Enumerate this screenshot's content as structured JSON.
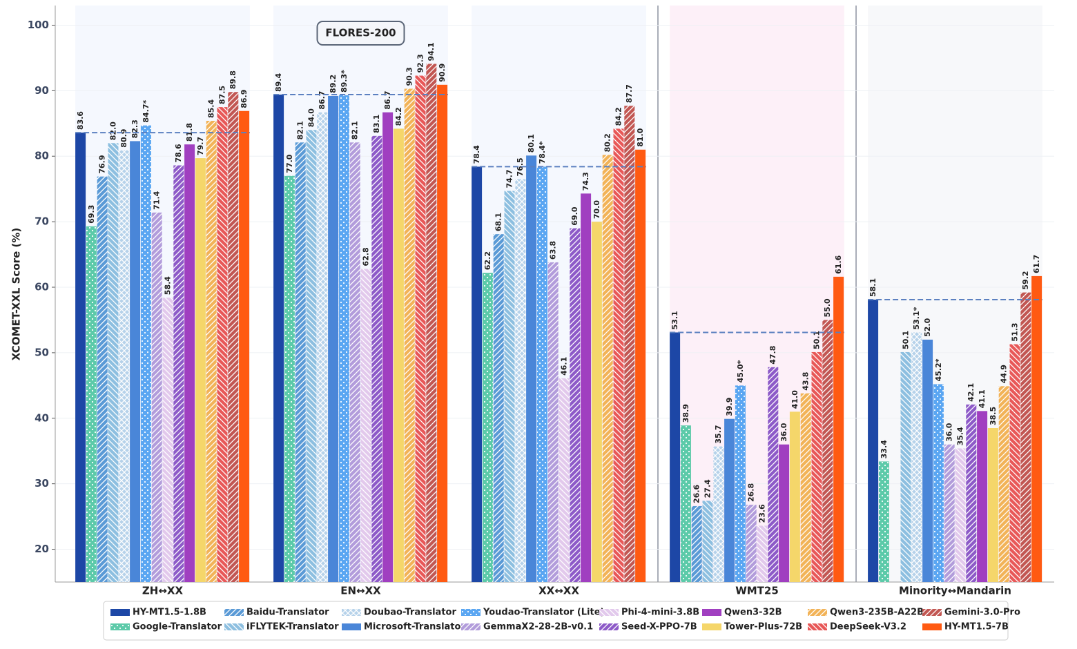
{
  "chart_data": {
    "type": "bar",
    "ylabel": "XCOMET-XXL Score (%)",
    "annotation": "FLORES-200",
    "categories": [
      "ZH↔XX",
      "EN↔XX",
      "XX↔XX",
      "WMT25",
      "Minority↔Mandarin"
    ],
    "ylim": [
      15,
      103
    ],
    "yticks": [
      20,
      30,
      40,
      50,
      60,
      70,
      80,
      90,
      100
    ],
    "grid": true,
    "legend": "bottom",
    "series": [
      {
        "name": "HY-MT1.5-1.8B",
        "color": "#1d47a6",
        "values": [
          83.6,
          89.4,
          78.4,
          53.1,
          58.1
        ],
        "value_labels": [
          "83.6",
          "89.4",
          "78.4",
          "53.1",
          "58.1"
        ]
      },
      {
        "name": "Google-Translator",
        "color": "#5ccaa9",
        "hatch": ".",
        "values": [
          69.3,
          77.0,
          62.2,
          38.9,
          33.4
        ],
        "value_labels": [
          "69.3",
          "77.0",
          "62.2",
          "38.9",
          "33.4"
        ]
      },
      {
        "name": "Baidu-Translator",
        "color": "#5a9ad6",
        "hatch": "/",
        "values": [
          76.9,
          82.1,
          68.1,
          26.6,
          null
        ],
        "value_labels": [
          "76.9",
          "82.1",
          "68.1",
          "26.6",
          null
        ]
      },
      {
        "name": "iFLYTEK-Translator",
        "color": "#8dbfe0",
        "hatch": "\\",
        "values": [
          82.0,
          84.0,
          74.7,
          27.4,
          50.1
        ],
        "value_labels": [
          "82.0",
          "84.0",
          "74.7",
          "27.4",
          "50.1"
        ]
      },
      {
        "name": "Doubao-Translator",
        "color": "#b6d2ea",
        "hatch": "x",
        "values": [
          80.9,
          86.7,
          76.5,
          35.7,
          53.1
        ],
        "value_labels": [
          "80.9",
          "86.7",
          "76.5",
          "35.7",
          "53.1*"
        ]
      },
      {
        "name": "Microsoft-Translator",
        "color": "#4a86d8",
        "values": [
          82.3,
          89.2,
          80.1,
          39.9,
          52.0
        ],
        "value_labels": [
          "82.3",
          "89.2",
          "80.1",
          "39.9",
          "52.0"
        ]
      },
      {
        "name": "Youdao-Translator (Lite)",
        "color": "#5aa6f2",
        "hatch": ".",
        "values": [
          84.7,
          89.3,
          78.4,
          45.0,
          45.2
        ],
        "value_labels": [
          "84.7*",
          "89.3*",
          "78.4*",
          "45.0*",
          "45.2*"
        ]
      },
      {
        "name": "GemmaX2-28-2B-v0.1",
        "color": "#b29cdb",
        "hatch": "/",
        "values": [
          71.4,
          82.1,
          63.8,
          26.8,
          36.0
        ],
        "value_labels": [
          "71.4",
          "82.1",
          "63.8",
          "26.8",
          "36.0"
        ]
      },
      {
        "name": "Phi-4-mini-3.8B",
        "color": "#e2c9ec",
        "hatch": "\\",
        "values": [
          58.4,
          62.8,
          46.1,
          23.6,
          35.4
        ],
        "value_labels": [
          "58.4",
          "62.8",
          "46.1",
          "23.6",
          "35.4"
        ]
      },
      {
        "name": "Seed-X-PPO-7B",
        "color": "#8d5ac8",
        "hatch": "/",
        "values": [
          78.6,
          83.1,
          69.0,
          47.8,
          42.1
        ],
        "value_labels": [
          "78.6",
          "83.1",
          "69.0",
          "47.8",
          "42.1"
        ]
      },
      {
        "name": "Qwen3-32B",
        "color": "#a03fc0",
        "values": [
          81.8,
          86.7,
          74.3,
          36.0,
          41.1
        ],
        "value_labels": [
          "81.8",
          "86.7",
          "74.3",
          "36.0",
          "41.1"
        ]
      },
      {
        "name": "Tower-Plus-72B",
        "color": "#f5d66a",
        "values": [
          79.7,
          84.2,
          70.0,
          41.0,
          38.5
        ],
        "value_labels": [
          "79.7",
          "84.2",
          "70.0",
          "41.0",
          "38.5"
        ]
      },
      {
        "name": "Qwen3-235B-A22B",
        "color": "#f2b358",
        "hatch": "/",
        "values": [
          85.4,
          90.3,
          80.2,
          43.8,
          44.9
        ],
        "value_labels": [
          "85.4",
          "90.3",
          "80.2",
          "43.8",
          "44.9"
        ]
      },
      {
        "name": "DeepSeek-V3.2",
        "color": "#e85858",
        "hatch": "\\",
        "values": [
          87.5,
          92.3,
          84.2,
          50.1,
          51.3
        ],
        "value_labels": [
          "87.5",
          "92.3",
          "84.2",
          "50.1",
          "51.3"
        ]
      },
      {
        "name": "Gemini-3.0-Pro",
        "color": "#c25753",
        "hatch": "/",
        "values": [
          89.8,
          94.1,
          87.7,
          55.0,
          59.2
        ],
        "value_labels": [
          "89.8",
          "94.1",
          "87.7",
          "55.0",
          "59.2"
        ]
      },
      {
        "name": "HY-MT1.5-7B",
        "color": "#ff5a12",
        "values": [
          86.9,
          90.9,
          81.0,
          61.6,
          61.7
        ],
        "value_labels": [
          "86.9",
          "90.9",
          "81.0",
          "61.6",
          "61.7"
        ]
      }
    ]
  }
}
